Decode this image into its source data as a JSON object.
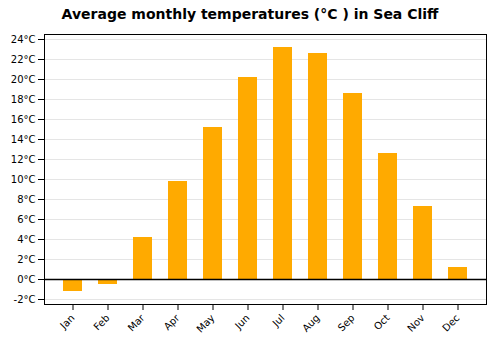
{
  "chart_data": {
    "type": "bar",
    "title": "Average monthly temperatures (°C ) in Sea Cliff",
    "categories": [
      "Jan",
      "Feb",
      "Mar",
      "Apr",
      "May",
      "Jun",
      "Jul",
      "Aug",
      "Sep",
      "Oct",
      "Nov",
      "Dec"
    ],
    "values": [
      -1.2,
      -0.5,
      4.2,
      9.8,
      15.2,
      20.2,
      23.2,
      22.6,
      18.6,
      12.6,
      7.3,
      1.2
    ],
    "color": "#FFAA00",
    "ylim": [
      -2.5,
      24.5
    ],
    "yticks": [
      {
        "value": -2,
        "label": "-2°C"
      },
      {
        "value": 0,
        "label": "0°C"
      },
      {
        "value": 2,
        "label": "2°C"
      },
      {
        "value": 4,
        "label": "4°C"
      },
      {
        "value": 6,
        "label": "6°C"
      },
      {
        "value": 8,
        "label": "8°C"
      },
      {
        "value": 10,
        "label": "10°C"
      },
      {
        "value": 12,
        "label": "12°C"
      },
      {
        "value": 14,
        "label": "14°C"
      },
      {
        "value": 16,
        "label": "16°C"
      },
      {
        "value": 18,
        "label": "18°C"
      },
      {
        "value": 20,
        "label": "20°C"
      },
      {
        "value": 22,
        "label": "22°C"
      },
      {
        "value": 24,
        "label": "24°C"
      }
    ],
    "grid": true
  }
}
